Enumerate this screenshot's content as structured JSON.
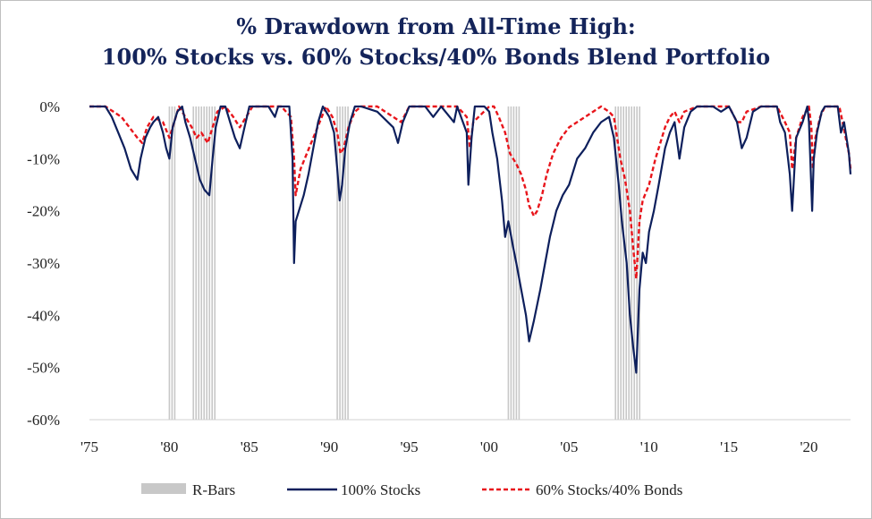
{
  "chart_data": {
    "type": "line",
    "title": "% Drawdown from All-Time High:",
    "subtitle": "100% Stocks vs. 60% Stocks/40% Bonds Blend Portfolio",
    "xlabel": "",
    "ylabel": "",
    "xlim": [
      1975,
      2022.6
    ],
    "ylim": [
      -60,
      0
    ],
    "x_ticks": [
      "'75",
      "'80",
      "'85",
      "'90",
      "'95",
      "'00",
      "'05",
      "'10",
      "'15",
      "'20"
    ],
    "y_ticks": [
      "0%",
      "-10%",
      "-20%",
      "-30%",
      "-40%",
      "-50%",
      "-60%"
    ],
    "legend": {
      "placement": "bottom",
      "entries": [
        "R-Bars",
        "100% Stocks",
        "60% Stocks/40% Bonds"
      ]
    },
    "colors": {
      "stocks": "#0d1f5c",
      "blend": "#e8151b",
      "rbars": "#c8c8c8",
      "title": "#14245a"
    },
    "recessions": [
      [
        1980.0,
        1980.5
      ],
      [
        1981.5,
        1982.9
      ],
      [
        1990.5,
        1991.2
      ],
      [
        2001.2,
        2001.9
      ],
      [
        2007.9,
        2009.5
      ]
    ],
    "series": [
      {
        "name": "100% Stocks",
        "style": "solid",
        "x": [
          1975.0,
          1976.0,
          1976.4,
          1976.8,
          1977.2,
          1977.6,
          1978.0,
          1978.2,
          1978.5,
          1978.8,
          1979.0,
          1979.3,
          1979.6,
          1979.8,
          1980.0,
          1980.2,
          1980.5,
          1980.8,
          1981.0,
          1981.3,
          1981.6,
          1981.9,
          1982.2,
          1982.5,
          1982.7,
          1982.9,
          1983.2,
          1983.5,
          1983.8,
          1984.1,
          1984.4,
          1984.7,
          1985.0,
          1985.4,
          1985.8,
          1986.2,
          1986.6,
          1986.8,
          1987.0,
          1987.5,
          1987.7,
          1987.8,
          1987.9,
          1988.1,
          1988.4,
          1988.7,
          1989.0,
          1989.3,
          1989.6,
          1990.0,
          1990.3,
          1990.5,
          1990.65,
          1990.8,
          1991.0,
          1991.3,
          1991.6,
          1992.0,
          1993.0,
          1994.0,
          1994.3,
          1994.6,
          1995.0,
          1996.0,
          1996.5,
          1997.0,
          1997.8,
          1998.0,
          1998.6,
          1998.7,
          1998.9,
          1999.1,
          1999.7,
          2000.0,
          2000.2,
          2000.5,
          2000.8,
          2001.0,
          2001.2,
          2001.5,
          2001.7,
          2002.0,
          2002.3,
          2002.5,
          2002.8,
          2003.0,
          2003.2,
          2003.5,
          2003.8,
          2004.2,
          2004.6,
          2005.0,
          2005.5,
          2006.0,
          2006.5,
          2007.0,
          2007.5,
          2007.8,
          2008.1,
          2008.3,
          2008.6,
          2008.8,
          2009.0,
          2009.2,
          2009.4,
          2009.6,
          2009.8,
          2010.0,
          2010.3,
          2010.6,
          2011.0,
          2011.3,
          2011.6,
          2011.9,
          2012.2,
          2012.6,
          2013.0,
          2014.0,
          2014.5,
          2015.0,
          2015.5,
          2015.8,
          2016.1,
          2016.5,
          2017.0,
          2018.0,
          2018.2,
          2018.5,
          2018.8,
          2018.95,
          2019.2,
          2019.6,
          2019.9,
          2020.0,
          2020.2,
          2020.3,
          2020.5,
          2020.8,
          2021.0,
          2021.8,
          2022.0,
          2022.2,
          2022.4,
          2022.5,
          2022.6
        ],
        "values": [
          0,
          0,
          -2,
          -5,
          -8,
          -12,
          -14,
          -10,
          -6,
          -4,
          -3,
          -2,
          -5,
          -8,
          -10,
          -4,
          -1,
          0,
          -3,
          -6,
          -10,
          -14,
          -16,
          -17,
          -10,
          -4,
          0,
          0,
          -3,
          -6,
          -8,
          -4,
          0,
          0,
          0,
          0,
          -2,
          0,
          0,
          0,
          -10,
          -30,
          -22,
          -20,
          -17,
          -13,
          -8,
          -3,
          0,
          -2,
          -5,
          -12,
          -18,
          -15,
          -8,
          -3,
          0,
          0,
          -1,
          -4,
          -7,
          -3,
          0,
          0,
          -2,
          0,
          -3,
          0,
          -5,
          -15,
          -6,
          0,
          0,
          -1,
          -5,
          -10,
          -18,
          -25,
          -22,
          -27,
          -30,
          -35,
          -40,
          -45,
          -41,
          -38,
          -35,
          -30,
          -25,
          -20,
          -17,
          -15,
          -10,
          -8,
          -5,
          -3,
          -2,
          -6,
          -15,
          -22,
          -30,
          -40,
          -46,
          -51,
          -35,
          -28,
          -30,
          -24,
          -20,
          -15,
          -8,
          -5,
          -3,
          -10,
          -4,
          -1,
          0,
          0,
          -1,
          0,
          -3,
          -8,
          -6,
          -1,
          0,
          0,
          -3,
          -5,
          -13,
          -20,
          -6,
          -3,
          0,
          -3,
          -20,
          -10,
          -5,
          -1,
          0,
          0,
          -5,
          -3,
          -7,
          -9,
          -13
        ]
      },
      {
        "name": "60% Stocks/40% Bonds",
        "style": "dashed",
        "x": [
          1975.0,
          1976.0,
          1976.5,
          1977.0,
          1977.5,
          1978.0,
          1978.3,
          1978.6,
          1979.0,
          1979.6,
          1980.0,
          1980.3,
          1980.6,
          1981.0,
          1981.4,
          1981.7,
          1982.0,
          1982.4,
          1982.7,
          1983.0,
          1983.5,
          1984.0,
          1984.4,
          1984.8,
          1985.2,
          1986.0,
          1987.0,
          1987.6,
          1987.8,
          1987.9,
          1988.2,
          1988.6,
          1989.0,
          1989.4,
          1989.8,
          1990.2,
          1990.5,
          1990.7,
          1990.9,
          1991.2,
          1991.6,
          1992.0,
          1993.0,
          1994.0,
          1994.5,
          1995.0,
          1996.0,
          1997.0,
          1998.0,
          1998.6,
          1998.8,
          1999.0,
          2000.0,
          2000.3,
          2000.6,
          2001.0,
          2001.3,
          2001.7,
          2002.0,
          2002.3,
          2002.5,
          2002.8,
          2003.0,
          2003.3,
          2003.6,
          2004.0,
          2004.5,
          2005.0,
          2006.0,
          2007.0,
          2007.5,
          2007.8,
          2008.0,
          2008.2,
          2008.5,
          2008.8,
          2009.0,
          2009.2,
          2009.4,
          2009.6,
          2010.0,
          2010.4,
          2010.7,
          2011.0,
          2011.3,
          2011.6,
          2011.9,
          2012.2,
          2013.0,
          2014.0,
          2015.0,
          2015.5,
          2015.8,
          2016.1,
          2017.0,
          2018.0,
          2018.5,
          2018.8,
          2018.95,
          2019.2,
          2019.6,
          2020.0,
          2020.15,
          2020.25,
          2020.4,
          2020.7,
          2021.0,
          2021.9,
          2022.1,
          2022.3,
          2022.5,
          2022.6
        ],
        "values": [
          0,
          0,
          -1,
          -2,
          -4,
          -6,
          -7,
          -4,
          -2,
          -3,
          -6,
          -3,
          0,
          -2,
          -4,
          -6,
          -5,
          -7,
          -4,
          -1,
          0,
          -2,
          -4,
          -2,
          0,
          0,
          0,
          -2,
          -10,
          -17,
          -12,
          -9,
          -6,
          -3,
          0,
          -2,
          -5,
          -9,
          -8,
          -4,
          -1,
          0,
          0,
          -2,
          -3,
          0,
          0,
          0,
          0,
          -2,
          -8,
          -3,
          0,
          0,
          -2,
          -5,
          -9,
          -11,
          -13,
          -16,
          -19,
          -21,
          -20,
          -17,
          -13,
          -9,
          -6,
          -4,
          -2,
          0,
          -1,
          -2,
          -6,
          -10,
          -14,
          -20,
          -27,
          -33,
          -22,
          -18,
          -15,
          -10,
          -7,
          -4,
          -2,
          -1,
          -3,
          -1,
          0,
          0,
          0,
          -3,
          -3,
          -1,
          0,
          0,
          -3,
          -5,
          -12,
          -6,
          -2,
          0,
          -4,
          -12,
          -6,
          -2,
          0,
          0,
          -3,
          -6,
          -9,
          -12
        ]
      }
    ]
  }
}
